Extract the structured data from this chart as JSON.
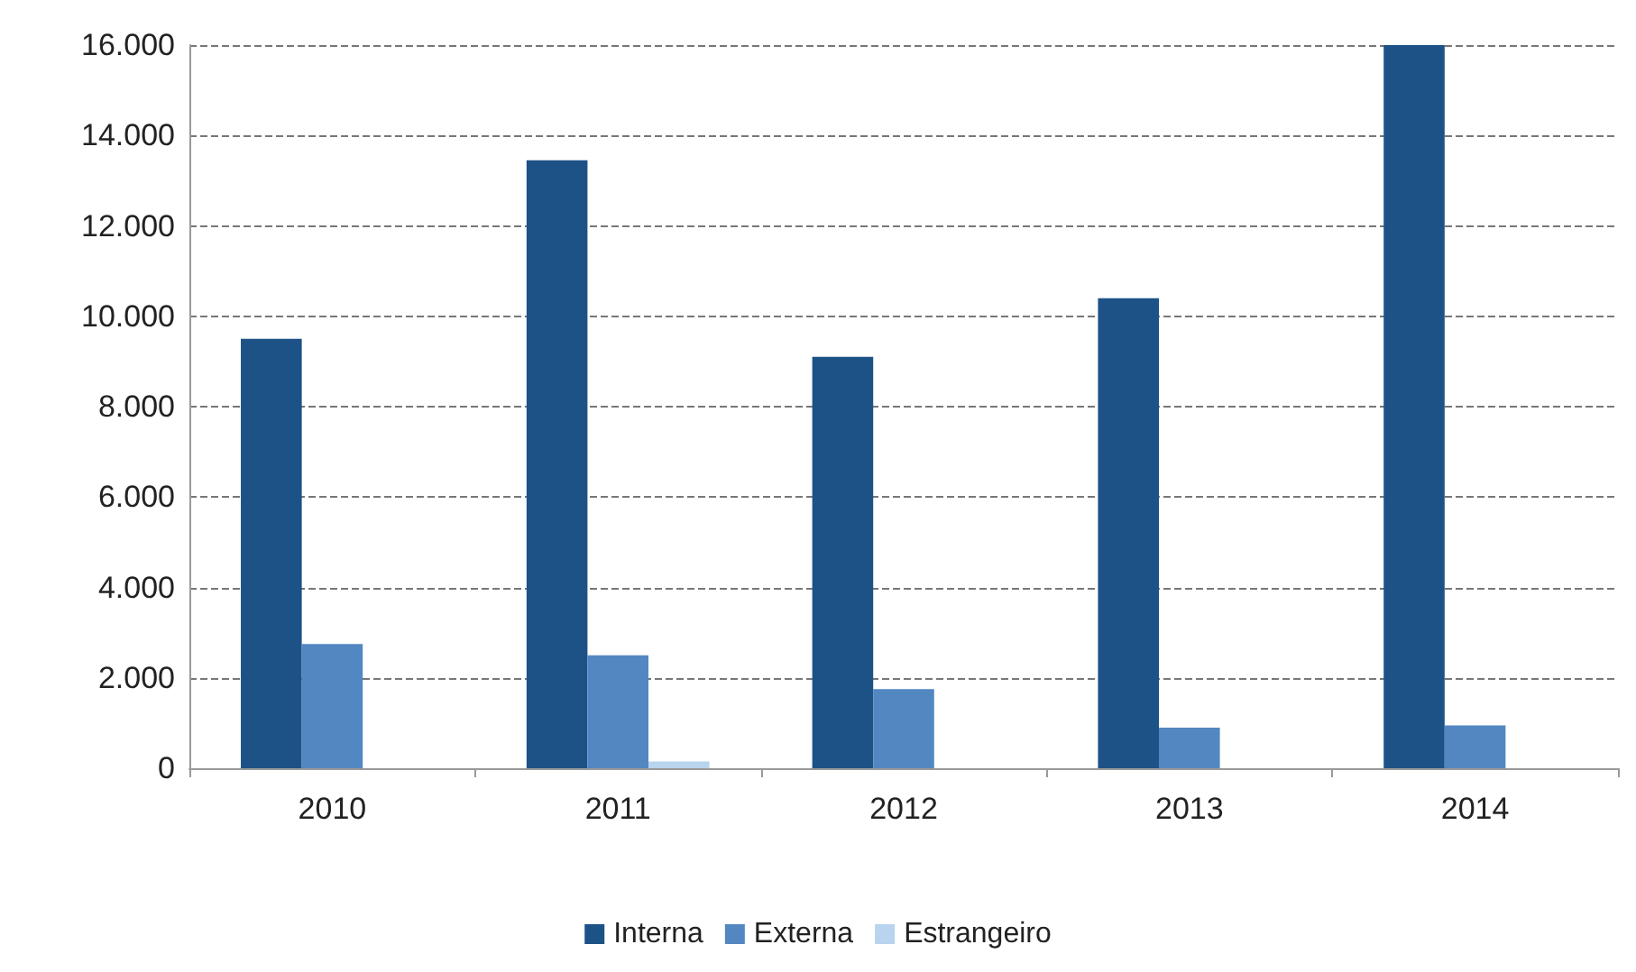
{
  "chart_data": {
    "type": "bar",
    "categories": [
      "2010",
      "2011",
      "2012",
      "2013",
      "2014"
    ],
    "series": [
      {
        "name": "Interna",
        "color": "#1d5287",
        "values": [
          9500,
          13450,
          9100,
          10400,
          16000
        ]
      },
      {
        "name": "Externa",
        "color": "#5287c2",
        "values": [
          2750,
          2500,
          1750,
          900,
          950
        ]
      },
      {
        "name": "Estrangeiro",
        "color": "#b8d4ee",
        "values": [
          0,
          150,
          0,
          0,
          0
        ]
      }
    ],
    "ylim": [
      0,
      16000
    ],
    "yticks": [
      {
        "value": 0,
        "label": "0"
      },
      {
        "value": 2000,
        "label": "2.000"
      },
      {
        "value": 4000,
        "label": "4.000"
      },
      {
        "value": 6000,
        "label": "6.000"
      },
      {
        "value": 8000,
        "label": "8.000"
      },
      {
        "value": 10000,
        "label": "10.000"
      },
      {
        "value": 12000,
        "label": "12.000"
      },
      {
        "value": 14000,
        "label": "14.000"
      },
      {
        "value": 16000,
        "label": "16.000"
      }
    ],
    "grid": "y",
    "legend": "bottom"
  }
}
